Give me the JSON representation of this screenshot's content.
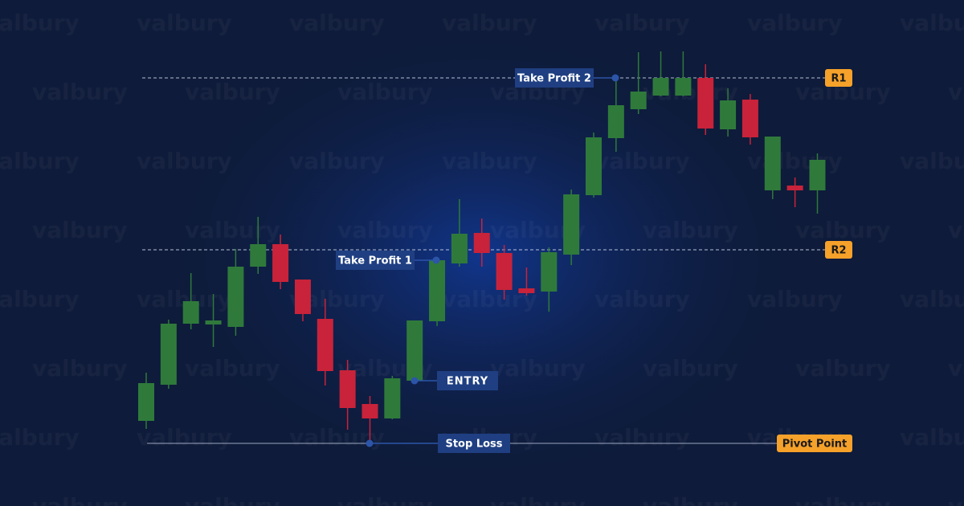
{
  "chart_data": {
    "type": "candlestick",
    "watermark": "valbury",
    "open": [
      106,
      151,
      227,
      226,
      223,
      298,
      326,
      282,
      233,
      169,
      127,
      109,
      156,
      230,
      302,
      340,
      315,
      271,
      267,
      313,
      387,
      458,
      494,
      511,
      511,
      533,
      469,
      506,
      393,
      399,
      393
    ],
    "high": [
      166,
      232,
      290,
      264,
      320,
      360,
      338,
      282,
      258,
      182,
      137,
      162,
      231,
      310,
      382,
      358,
      325,
      297,
      322,
      394,
      465,
      532,
      565,
      566,
      566,
      550,
      520,
      513,
      460,
      409,
      439
    ],
    "low": [
      96,
      146,
      220,
      198,
      212,
      289,
      270,
      230,
      150,
      95,
      78,
      108,
      156,
      224,
      298,
      298,
      257,
      262,
      242,
      300,
      384,
      441,
      488,
      510,
      510,
      462,
      460,
      450,
      382,
      372,
      364
    ],
    "close": [
      153,
      227,
      255,
      231,
      298,
      326,
      279,
      239,
      168,
      122,
      109,
      159,
      231,
      306,
      339,
      315,
      269,
      265,
      316,
      388,
      459,
      499,
      516,
      533,
      533,
      470,
      505,
      459,
      460,
      393,
      431
    ],
    "up_color": "#2f7a3b",
    "down_color": "#c8233a",
    "ylim": [
      0,
      630
    ],
    "levels": [
      {
        "label": "R1",
        "value": 533
      },
      {
        "label": "R2",
        "value": 319
      },
      {
        "label": "Pivot Point",
        "value": 78
      }
    ],
    "annotations": [
      {
        "text": "Take Profit 2",
        "value": 533
      },
      {
        "text": "Take Profit 1",
        "value": 306
      },
      {
        "text": "ENTRY",
        "value": 156
      },
      {
        "text": "Stop Loss",
        "value": 78
      }
    ]
  }
}
